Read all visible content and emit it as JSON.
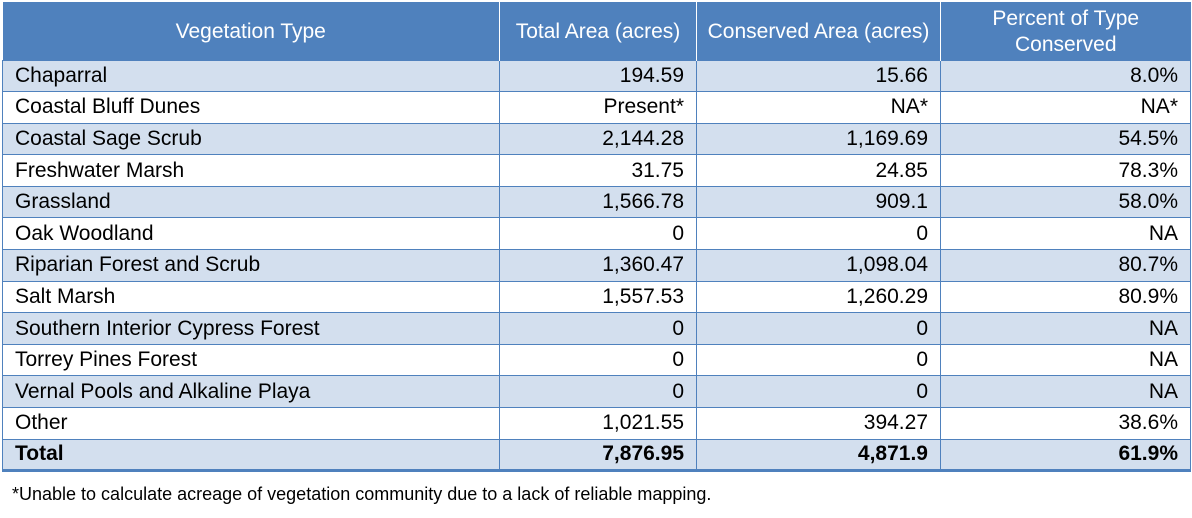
{
  "table": {
    "headers": [
      "Vegetation Type",
      "Total Area (acres)",
      "Conserved Area (acres)",
      "Percent of Type Conserved"
    ],
    "rows": [
      {
        "type": "Chaparral",
        "total": "194.59",
        "conserved": "15.66",
        "percent": "8.0%"
      },
      {
        "type": "Coastal Bluff Dunes",
        "total": "Present*",
        "conserved": "NA*",
        "percent": "NA*"
      },
      {
        "type": "Coastal Sage Scrub",
        "total": "2,144.28",
        "conserved": "1,169.69",
        "percent": "54.5%"
      },
      {
        "type": "Freshwater Marsh",
        "total": "31.75",
        "conserved": "24.85",
        "percent": "78.3%"
      },
      {
        "type": "Grassland",
        "total": "1,566.78",
        "conserved": "909.1",
        "percent": "58.0%"
      },
      {
        "type": "Oak Woodland",
        "total": "0",
        "conserved": "0",
        "percent": "NA"
      },
      {
        "type": "Riparian Forest and Scrub",
        "total": "1,360.47",
        "conserved": "1,098.04",
        "percent": "80.7%"
      },
      {
        "type": "Salt Marsh",
        "total": "1,557.53",
        "conserved": "1,260.29",
        "percent": "80.9%"
      },
      {
        "type": "Southern Interior Cypress Forest",
        "total": "0",
        "conserved": "0",
        "percent": "NA"
      },
      {
        "type": "Torrey Pines Forest",
        "total": "0",
        "conserved": "0",
        "percent": "NA"
      },
      {
        "type": "Vernal Pools and Alkaline Playa",
        "total": "0",
        "conserved": "0",
        "percent": "NA"
      },
      {
        "type": "Other",
        "total": "1,021.55",
        "conserved": "394.27",
        "percent": "38.6%"
      }
    ],
    "total_row": {
      "type": "Total",
      "total": "7,876.95",
      "conserved": "4,871.9",
      "percent": "61.9%"
    }
  },
  "footnote": "*Unable to calculate acreage of vegetation community due to a lack of reliable mapping.",
  "colors": {
    "header_bg": "#4f81bd",
    "band_bg": "#d3dfee",
    "header_text": "#ffffff"
  }
}
